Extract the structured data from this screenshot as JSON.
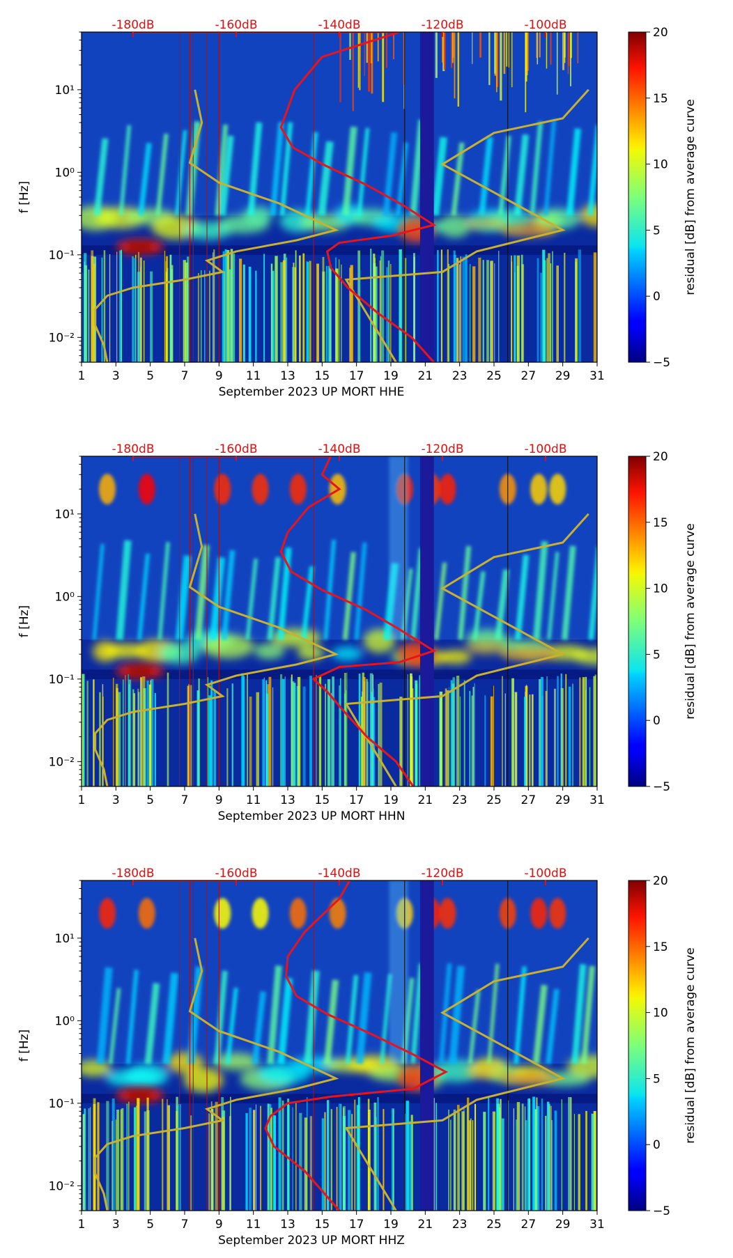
{
  "chart_data": [
    {
      "type": "heatmap",
      "xlabel": "September 2023 UP MORT  HHE",
      "ylabel": "f [Hz]",
      "colorbar_label": "residual [dB] from average curve",
      "x_ticks": [
        1,
        3,
        5,
        7,
        9,
        11,
        13,
        15,
        17,
        19,
        21,
        23,
        25,
        27,
        29,
        31
      ],
      "y_ticks": [
        {
          "value": 10,
          "label": "10¹"
        },
        {
          "value": 1,
          "label": "10⁰"
        },
        {
          "value": 0.1,
          "label": "10⁻¹"
        },
        {
          "value": 0.01,
          "label": "10⁻²"
        }
      ],
      "db_ticks": [
        {
          "label": "-180dB",
          "x": 4
        },
        {
          "label": "-160dB",
          "x": 10
        },
        {
          "label": "-140dB",
          "x": 16
        },
        {
          "label": "-120dB",
          "x": 22
        },
        {
          "label": "-100dB",
          "x": 28
        }
      ],
      "colorbar_ticks": [
        20,
        15,
        10,
        5,
        0,
        -5
      ],
      "xlim": [
        1,
        31
      ],
      "ylim": [
        0.005,
        50
      ],
      "clim": [
        -5,
        20
      ],
      "red_curve": [
        [
          4,
          50
        ],
        [
          19.5,
          50
        ],
        [
          15,
          25
        ],
        [
          13.4,
          10
        ],
        [
          12.6,
          3.5
        ],
        [
          13.3,
          2
        ],
        [
          15.2,
          1.2
        ],
        [
          17.6,
          0.7
        ],
        [
          19.7,
          0.4
        ],
        [
          21.5,
          0.23
        ],
        [
          19,
          0.17
        ],
        [
          16,
          0.14
        ],
        [
          15.3,
          0.11
        ],
        [
          15.5,
          0.07
        ],
        [
          16.5,
          0.04
        ],
        [
          18.2,
          0.02
        ],
        [
          20.2,
          0.01
        ],
        [
          21.5,
          0.005
        ]
      ],
      "yellow_nlnm": [
        [
          2.5,
          0.005
        ],
        [
          2.3,
          0.008
        ],
        [
          1.8,
          0.014
        ],
        [
          1.8,
          0.022
        ],
        [
          2.5,
          0.032
        ],
        [
          4,
          0.04
        ],
        [
          7,
          0.05
        ],
        [
          9.2,
          0.062
        ],
        [
          8.3,
          0.085
        ],
        [
          10,
          0.11
        ],
        [
          13.5,
          0.15
        ],
        [
          15.8,
          0.2
        ],
        [
          12.5,
          0.42
        ],
        [
          9,
          0.75
        ],
        [
          7.3,
          1.3
        ],
        [
          8,
          4
        ],
        [
          7.6,
          10
        ]
      ],
      "yellow_nhnm": [
        [
          19.3,
          0.005
        ],
        [
          16.4,
          0.05
        ],
        [
          22,
          0.062
        ],
        [
          24,
          0.11
        ],
        [
          29,
          0.2
        ],
        [
          22,
          1.25
        ],
        [
          25,
          3
        ],
        [
          29,
          4.5
        ],
        [
          30.5,
          10
        ]
      ]
    },
    {
      "type": "heatmap",
      "xlabel": "September 2023 UP MORT  HHN",
      "ylabel": "f [Hz]",
      "colorbar_label": "residual [dB] from average curve",
      "x_ticks": [
        1,
        3,
        5,
        7,
        9,
        11,
        13,
        15,
        17,
        19,
        21,
        23,
        25,
        27,
        29,
        31
      ],
      "y_ticks": [
        {
          "value": 10,
          "label": "10¹"
        },
        {
          "value": 1,
          "label": "10⁰"
        },
        {
          "value": 0.1,
          "label": "10⁻¹"
        },
        {
          "value": 0.01,
          "label": "10⁻²"
        }
      ],
      "db_ticks": [
        {
          "label": "-180dB",
          "x": 4
        },
        {
          "label": "-160dB",
          "x": 10
        },
        {
          "label": "-140dB",
          "x": 16
        },
        {
          "label": "-120dB",
          "x": 22
        },
        {
          "label": "-100dB",
          "x": 28
        }
      ],
      "colorbar_ticks": [
        20,
        15,
        10,
        5,
        0,
        -5
      ],
      "xlim": [
        1,
        31
      ],
      "ylim": [
        0.005,
        50
      ],
      "clim": [
        -5,
        20
      ],
      "red_curve": [
        [
          4,
          50
        ],
        [
          15.5,
          50
        ],
        [
          15,
          30
        ],
        [
          16,
          20
        ],
        [
          14.2,
          12
        ],
        [
          13,
          6
        ],
        [
          12.6,
          3.5
        ],
        [
          13.2,
          2
        ],
        [
          15,
          1.2
        ],
        [
          17.5,
          0.7
        ],
        [
          19.5,
          0.4
        ],
        [
          21.5,
          0.22
        ],
        [
          19.5,
          0.16
        ],
        [
          16,
          0.14
        ],
        [
          14.5,
          0.1
        ],
        [
          15.3,
          0.07
        ],
        [
          16.3,
          0.04
        ],
        [
          17.6,
          0.02
        ],
        [
          19.3,
          0.01
        ],
        [
          20.3,
          0.005
        ]
      ],
      "yellow_nlnm": [
        [
          2.5,
          0.005
        ],
        [
          2.3,
          0.008
        ],
        [
          1.8,
          0.014
        ],
        [
          1.8,
          0.022
        ],
        [
          2.5,
          0.032
        ],
        [
          4,
          0.04
        ],
        [
          7,
          0.05
        ],
        [
          9.2,
          0.062
        ],
        [
          8.3,
          0.085
        ],
        [
          10,
          0.11
        ],
        [
          13.5,
          0.15
        ],
        [
          15.8,
          0.2
        ],
        [
          12.5,
          0.42
        ],
        [
          9,
          0.75
        ],
        [
          7.3,
          1.3
        ],
        [
          8,
          4
        ],
        [
          7.6,
          10
        ]
      ],
      "yellow_nhnm": [
        [
          19.3,
          0.005
        ],
        [
          16.4,
          0.05
        ],
        [
          22,
          0.062
        ],
        [
          24,
          0.11
        ],
        [
          29,
          0.2
        ],
        [
          22,
          1.25
        ],
        [
          25,
          3
        ],
        [
          29,
          4.5
        ],
        [
          30.5,
          10
        ]
      ]
    },
    {
      "type": "heatmap",
      "xlabel": "September 2023 UP MORT  HHZ",
      "ylabel": "f [Hz]",
      "colorbar_label": "residual [dB] from average curve",
      "x_ticks": [
        1,
        3,
        5,
        7,
        9,
        11,
        13,
        15,
        17,
        19,
        21,
        23,
        25,
        27,
        29,
        31
      ],
      "y_ticks": [
        {
          "value": 10,
          "label": "10¹"
        },
        {
          "value": 1,
          "label": "10⁰"
        },
        {
          "value": 0.1,
          "label": "10⁻¹"
        },
        {
          "value": 0.01,
          "label": "10⁻²"
        }
      ],
      "db_ticks": [
        {
          "label": "-180dB",
          "x": 4
        },
        {
          "label": "-160dB",
          "x": 10
        },
        {
          "label": "-140dB",
          "x": 16
        },
        {
          "label": "-120dB",
          "x": 22
        },
        {
          "label": "-100dB",
          "x": 28
        }
      ],
      "colorbar_ticks": [
        20,
        15,
        10,
        5,
        0,
        -5
      ],
      "xlim": [
        1,
        31
      ],
      "ylim": [
        0.005,
        50
      ],
      "clim": [
        -5,
        20
      ],
      "red_curve": [
        [
          4,
          50
        ],
        [
          16.6,
          50
        ],
        [
          16,
          30
        ],
        [
          15.6,
          25
        ],
        [
          14,
          12
        ],
        [
          13,
          6
        ],
        [
          12.9,
          3.5
        ],
        [
          13.5,
          2
        ],
        [
          15.3,
          1.2
        ],
        [
          17.8,
          0.7
        ],
        [
          20.2,
          0.4
        ],
        [
          22.2,
          0.24
        ],
        [
          20.3,
          0.15
        ],
        [
          15.5,
          0.12
        ],
        [
          13,
          0.1
        ],
        [
          12,
          0.07
        ],
        [
          11.7,
          0.05
        ],
        [
          12.2,
          0.03
        ],
        [
          14,
          0.015
        ],
        [
          16,
          0.005
        ]
      ],
      "yellow_nlnm": [
        [
          2.5,
          0.005
        ],
        [
          2.3,
          0.008
        ],
        [
          1.8,
          0.014
        ],
        [
          1.8,
          0.022
        ],
        [
          2.5,
          0.032
        ],
        [
          4,
          0.04
        ],
        [
          7,
          0.05
        ],
        [
          9.2,
          0.062
        ],
        [
          8.3,
          0.085
        ],
        [
          10,
          0.11
        ],
        [
          13.5,
          0.15
        ],
        [
          15.8,
          0.2
        ],
        [
          12.5,
          0.42
        ],
        [
          9,
          0.75
        ],
        [
          7.3,
          1.3
        ],
        [
          8,
          4
        ],
        [
          7.6,
          10
        ]
      ],
      "yellow_nhnm": [
        [
          19.3,
          0.005
        ],
        [
          16.4,
          0.05
        ],
        [
          22,
          0.062
        ],
        [
          24,
          0.11
        ],
        [
          29,
          0.2
        ],
        [
          22,
          1.25
        ],
        [
          25,
          3
        ],
        [
          29,
          4.5
        ],
        [
          30.5,
          10
        ]
      ]
    }
  ],
  "colors": {
    "red_curve": "#e8141c",
    "yellow_curve": "#c8b030",
    "db_label": "#e01010",
    "heatmap_base": "#08208c"
  }
}
